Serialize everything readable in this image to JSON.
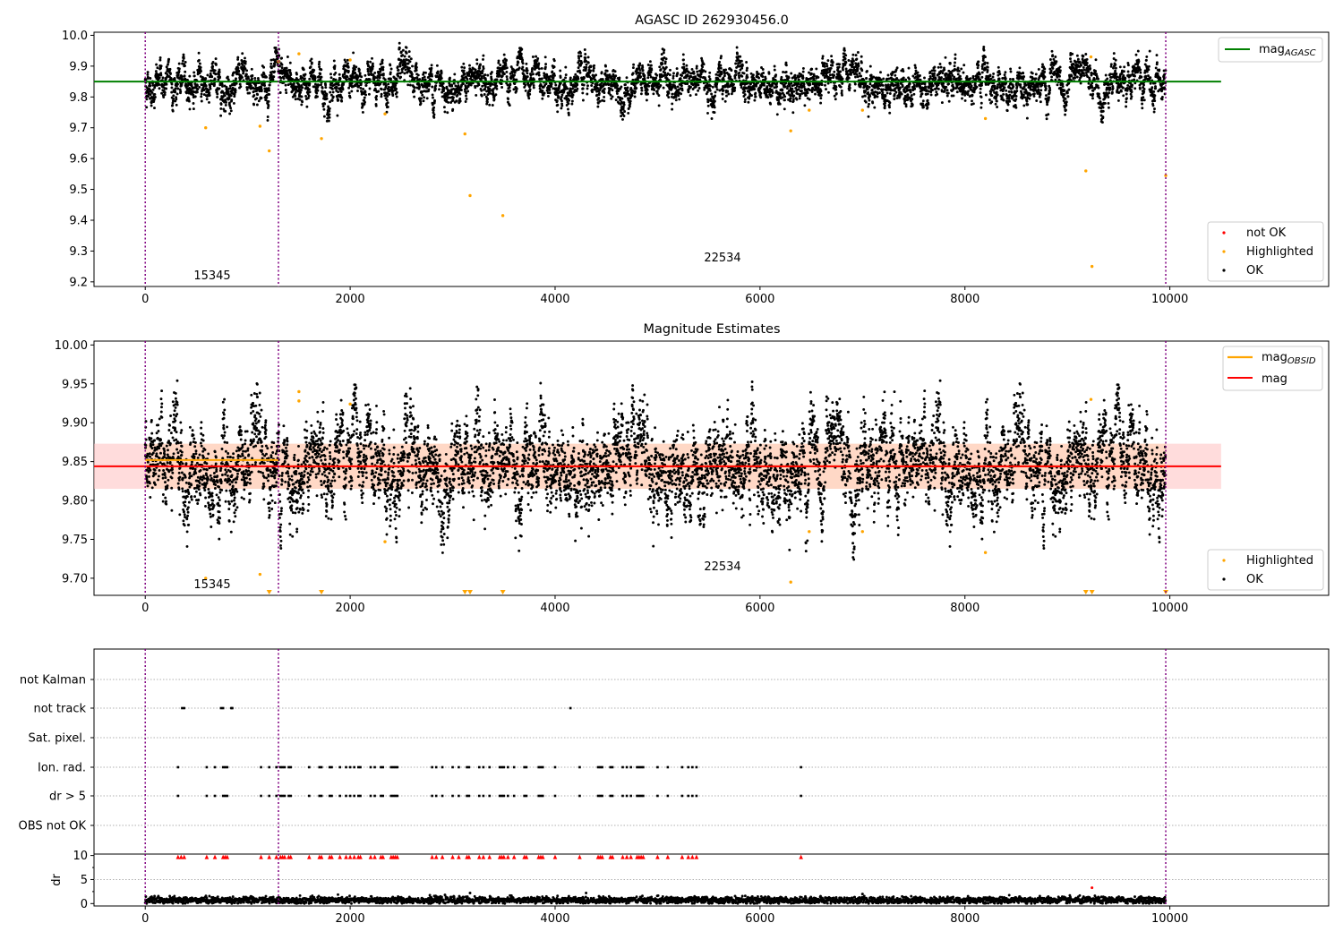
{
  "colors": {
    "ok": "#000000",
    "not_ok": "#ff0000",
    "highlighted": "#ffa500",
    "mag_agasc_line": "#008000",
    "mag_obsid_line": "#ffa500",
    "mag_line": "#ff0000",
    "mag_band": "#ffc0c0",
    "obs_boundary": "#800080",
    "grid": "#b0b0b0"
  },
  "chart_data": [
    {
      "type": "scatter",
      "title": "AGASC ID 262930456.0",
      "xlim": [
        -500,
        11550
      ],
      "ylim": [
        9.185,
        10.01
      ],
      "x_ticks": [
        0,
        2000,
        4000,
        6000,
        8000,
        10000
      ],
      "y_ticks": [
        9.2,
        9.3,
        9.4,
        9.5,
        9.6,
        9.7,
        9.8,
        9.9,
        10.0
      ],
      "obs_boundaries": [
        0,
        1300,
        9960
      ],
      "annotations": [
        {
          "text": "15345",
          "x": 650,
          "y": 9.215
        },
        {
          "text": "22534",
          "x": 5620,
          "y": 9.275
        }
      ],
      "reference_lines": [
        {
          "name": "mag_AGASC",
          "y": 9.85,
          "x_range": [
            -500,
            10500
          ]
        }
      ],
      "ok_series": {
        "x_range": [
          0,
          9960
        ],
        "center": 9.845,
        "spread": 0.03
      },
      "highlighted": {
        "x": [
          590,
          1120,
          1210,
          1300,
          1500,
          1720,
          2000,
          2340,
          3120,
          3170,
          3490,
          6300,
          6480,
          7000,
          8200,
          9180,
          9230,
          9240,
          9960
        ],
        "y": [
          9.7,
          9.705,
          9.625,
          9.915,
          9.94,
          9.665,
          9.92,
          9.745,
          9.68,
          9.48,
          9.415,
          9.69,
          9.757,
          9.757,
          9.73,
          9.56,
          9.93,
          9.25,
          9.545
        ]
      },
      "legend": {
        "upper": [
          {
            "label": "mag",
            "sub": "AGASC"
          }
        ],
        "lower": [
          "not OK",
          "Highlighted",
          "OK"
        ],
        "positions": [
          "upper-right",
          "lower-right"
        ]
      }
    },
    {
      "type": "scatter",
      "title": "Magnitude Estimates",
      "xlim": [
        -500,
        11550
      ],
      "ylim": [
        9.678,
        10.005
      ],
      "x_ticks": [
        0,
        2000,
        4000,
        6000,
        8000,
        10000
      ],
      "y_ticks": [
        9.7,
        9.75,
        9.8,
        9.85,
        9.9,
        9.95,
        10.0
      ],
      "obs_boundaries": [
        0,
        1300,
        9960
      ],
      "annotations": [
        {
          "text": "15345",
          "x": 650,
          "y": 9.69
        },
        {
          "text": "22534",
          "x": 5620,
          "y": 9.715
        }
      ],
      "reference_lines": [
        {
          "name": "mag_OBSID",
          "y": 9.852,
          "x_range": [
            0,
            1300
          ]
        },
        {
          "name": "mag_OBSID",
          "y": 9.844,
          "x_range": [
            1300,
            9960
          ]
        },
        {
          "name": "mag",
          "y": 9.844,
          "x_range": [
            -500,
            10500
          ]
        }
      ],
      "band": {
        "y_min": 9.815,
        "y_max": 9.873,
        "x_range": [
          -500,
          10500
        ]
      },
      "ok_series": {
        "x_range": [
          0,
          9960
        ],
        "center": 9.843,
        "spread": 0.028
      },
      "highlighted": {
        "x": [
          590,
          1120,
          1500,
          1500,
          2000,
          2340,
          6480,
          7000,
          8200,
          6300,
          9230
        ],
        "y": [
          9.7,
          9.705,
          9.94,
          9.928,
          9.924,
          9.747,
          9.76,
          9.76,
          9.733,
          9.695,
          9.93
        ]
      },
      "clipped_markers_x": [
        1210,
        1720,
        3120,
        3170,
        3490,
        9180,
        9240,
        9960
      ],
      "legend": {
        "upper": [
          {
            "label": "mag",
            "sub": "OBSID"
          },
          {
            "label": "mag",
            "sub": ""
          }
        ],
        "lower": [
          "Highlighted",
          "OK"
        ],
        "positions": [
          "upper-right",
          "lower-right"
        ]
      }
    },
    {
      "type": "scatter",
      "title": "",
      "xlim": [
        -500,
        11550
      ],
      "x_ticks": [
        0,
        2000,
        4000,
        6000,
        8000,
        10000
      ],
      "obs_boundaries": [
        0,
        1300,
        9960
      ],
      "flag_rows": [
        "not Kalman",
        "not track",
        "Sat. pixel.",
        "Ion. rad.",
        "dr > 5",
        "OBS not OK"
      ],
      "not_track_x": [
        360,
        380,
        740,
        760,
        840,
        850,
        4150
      ],
      "ion_rad_x": [
        320,
        600,
        680,
        760,
        780,
        800,
        1130,
        1210,
        1280,
        1320,
        1340,
        1360,
        1400,
        1420,
        1600,
        1700,
        1720,
        1800,
        1820,
        1900,
        1960,
        2000,
        2040,
        2080,
        2100,
        2200,
        2240,
        2300,
        2320,
        2400,
        2420,
        2440,
        2460,
        2800,
        2840,
        2900,
        3000,
        3060,
        3140,
        3160,
        3260,
        3300,
        3360,
        3460,
        3480,
        3500,
        3540,
        3600,
        3700,
        3720,
        3840,
        3860,
        3880,
        4000,
        4240,
        4420,
        4440,
        4460,
        4540,
        4560,
        4660,
        4700,
        4740,
        4800,
        4820,
        4840,
        4860,
        5000,
        5100,
        5240,
        5300,
        5340,
        5380,
        6400
      ],
      "dr_gt5_x": [
        320,
        600,
        680,
        760,
        780,
        800,
        1130,
        1210,
        1280,
        1320,
        1340,
        1360,
        1400,
        1420,
        1600,
        1700,
        1720,
        1800,
        1820,
        1900,
        1960,
        2000,
        2040,
        2080,
        2100,
        2200,
        2240,
        2300,
        2320,
        2400,
        2420,
        2440,
        2460,
        2800,
        2840,
        2900,
        3000,
        3060,
        3140,
        3160,
        3260,
        3300,
        3360,
        3460,
        3480,
        3500,
        3540,
        3600,
        3700,
        3720,
        3840,
        3860,
        3880,
        4000,
        4240,
        4420,
        4440,
        4460,
        4540,
        4560,
        4660,
        4700,
        4740,
        4800,
        4820,
        4840,
        4860,
        5000,
        5100,
        5240,
        5300,
        5340,
        5380,
        6400
      ],
      "dr_ylabel": "dr",
      "dr_ylim": [
        -0.5,
        10.3
      ],
      "dr_y_ticks": [
        0,
        5,
        10
      ],
      "dr_clipped_x": [
        320,
        350,
        380,
        600,
        680,
        760,
        780,
        800,
        1130,
        1210,
        1280,
        1320,
        1340,
        1360,
        1400,
        1420,
        1600,
        1700,
        1720,
        1800,
        1820,
        1900,
        1960,
        2000,
        2040,
        2080,
        2100,
        2200,
        2240,
        2300,
        2320,
        2400,
        2420,
        2440,
        2460,
        2800,
        2840,
        2900,
        3000,
        3060,
        3140,
        3160,
        3260,
        3300,
        3360,
        3460,
        3480,
        3500,
        3540,
        3600,
        3700,
        3720,
        3840,
        3860,
        3880,
        4000,
        4240,
        4420,
        4440,
        4460,
        4540,
        4560,
        4660,
        4700,
        4740,
        4800,
        4820,
        4840,
        4860,
        5000,
        5100,
        5240,
        5300,
        5340,
        5380,
        6400
      ],
      "dr_extra_points": [
        {
          "x": 3170,
          "y": 2.2
        },
        {
          "x": 7000,
          "y": 2.0
        },
        {
          "x": 9240,
          "y": 3.3
        }
      ],
      "dr_series": {
        "x_range": [
          0,
          9960
        ],
        "center": 0.7,
        "spread": 0.35
      }
    }
  ]
}
